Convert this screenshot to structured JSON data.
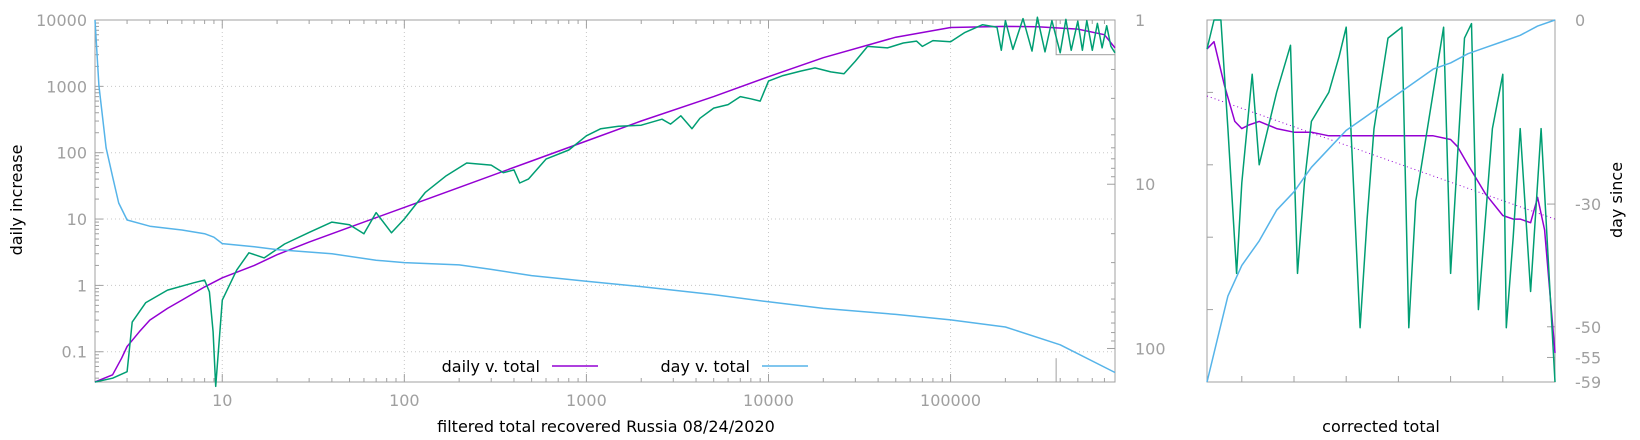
{
  "chart_data": [
    {
      "type": "line",
      "x_scale": "log",
      "y_scale": "log",
      "y2_scale": "log-reversed",
      "xlabel": "filtered total recovered Russia 08/24/2020",
      "ylabel": "daily increase",
      "y2label": "",
      "xlim": [
        2,
        800000
      ],
      "ylim": [
        0.035,
        10000
      ],
      "y2lim": [
        1,
        160
      ],
      "x_ticks": [
        10,
        100,
        1000,
        10000,
        100000
      ],
      "x_tick_labels": [
        "10",
        "100",
        "1000",
        "10000",
        "100000"
      ],
      "y_ticks": [
        0.1,
        1,
        10,
        100,
        1000,
        10000
      ],
      "y_tick_labels": [
        "0.1",
        "1",
        "10",
        "100",
        "1000",
        "10000"
      ],
      "y2_ticks": [
        1,
        10,
        100
      ],
      "y2_tick_labels": [
        "1",
        "10",
        "100"
      ],
      "grid": true,
      "legend_position": "bottom-center",
      "series": [
        {
          "name": "daily v. total",
          "color": "#9400d3",
          "axis": "y",
          "x": [
            2,
            2.5,
            2.8,
            3,
            3.5,
            4,
            5,
            6,
            8,
            10,
            15,
            20,
            30,
            50,
            100,
            200,
            500,
            1000,
            2000,
            5000,
            10000,
            20000,
            50000,
            100000,
            200000,
            300000,
            500000,
            700000,
            800000
          ],
          "y": [
            0.035,
            0.045,
            0.08,
            0.12,
            0.2,
            0.3,
            0.45,
            0.6,
            0.95,
            1.3,
            2.0,
            2.9,
            4.5,
            7.5,
            15,
            30,
            75,
            150,
            300,
            700,
            1400,
            2700,
            5500,
            7700,
            8000,
            7900,
            7300,
            6000,
            3800
          ]
        },
        {
          "name": "",
          "color": "#009e73",
          "axis": "y",
          "x": [
            2,
            2.5,
            3,
            3.2,
            3.8,
            5,
            7,
            8,
            8.5,
            8.9,
            9.2,
            10,
            12,
            14,
            17,
            22,
            30,
            40,
            50,
            60,
            70,
            85,
            100,
            130,
            170,
            220,
            300,
            350,
            400,
            430,
            480,
            600,
            800,
            1000,
            1200,
            1500,
            2000,
            2600,
            2900,
            3300,
            3800,
            4200,
            5000,
            6000,
            7000,
            8000,
            9000,
            10000,
            12000,
            15000,
            18000,
            22000,
            26000,
            30000,
            35000,
            45000,
            55000,
            65000,
            70000,
            80000,
            100000,
            120000,
            150000,
            180000,
            190000,
            200000,
            220000,
            250000,
            280000,
            300000,
            330000,
            360000,
            400000,
            430000,
            460000,
            500000,
            530000,
            560000,
            600000,
            640000,
            680000,
            720000,
            760000,
            800000
          ],
          "y": [
            0.035,
            0.04,
            0.05,
            0.28,
            0.55,
            0.85,
            1.1,
            1.2,
            0.8,
            0.2,
            0.03,
            0.6,
            1.7,
            3.1,
            2.6,
            4.2,
            6.3,
            9,
            8.2,
            6,
            12.5,
            6.2,
            10,
            25,
            45,
            70,
            65,
            50,
            55,
            35,
            40,
            80,
            110,
            180,
            230,
            250,
            260,
            320,
            270,
            360,
            230,
            330,
            470,
            530,
            700,
            650,
            600,
            1200,
            1450,
            1700,
            1900,
            1650,
            1550,
            2400,
            4000,
            3800,
            4500,
            4800,
            4000,
            4900,
            4700,
            6500,
            8500,
            7800,
            3500,
            9800,
            3600,
            10500,
            3400,
            11000,
            3300,
            9800,
            3200,
            10200,
            3500,
            9600,
            3500,
            9800,
            3500,
            8900,
            3800,
            8200,
            4000,
            3200
          ]
        },
        {
          "name": "day v. total",
          "color": "#56b4e9",
          "axis": "y2",
          "x": [
            2,
            2.1,
            2.3,
            2.5,
            2.7,
            3,
            4,
            6,
            8,
            9,
            10,
            15,
            20,
            40,
            70,
            100,
            200,
            300,
            500,
            1000,
            2000,
            5000,
            10000,
            20000,
            50000,
            100000,
            200000,
            400000,
            800000
          ],
          "y2": [
            1,
            2.5,
            6,
            9,
            13,
            16.5,
            18,
            19,
            20,
            21,
            23,
            24,
            25,
            26.5,
            29,
            30,
            31,
            33,
            36,
            39,
            42,
            47,
            52,
            57,
            62,
            67,
            74,
            95,
            140
          ]
        }
      ],
      "inset_box": {
        "x": [
          380000,
          800000
        ],
        "y": [
          3000,
          10000
        ]
      }
    },
    {
      "type": "line",
      "xlabel": "corrected total",
      "ylabel": "",
      "y2label": "day since",
      "y_scale": "linear",
      "y2lim": [
        -59,
        0
      ],
      "y2_ticks": [
        0,
        -30,
        -50,
        -55,
        -59
      ],
      "y2_tick_labels": [
        "0",
        "-30",
        "-50",
        "-55",
        "-59"
      ],
      "xlim": [
        0,
        1
      ],
      "ylim": [
        0,
        1
      ],
      "series": [
        {
          "name": "",
          "color": "#9400d3",
          "x": [
            0,
            0.02,
            0.05,
            0.08,
            0.1,
            0.12,
            0.15,
            0.2,
            0.25,
            0.3,
            0.35,
            0.4,
            0.5,
            0.55,
            0.6,
            0.65,
            0.7,
            0.72,
            0.75,
            0.8,
            0.85,
            0.88,
            0.9,
            0.93,
            0.95,
            0.97,
            1
          ],
          "y": [
            0.92,
            0.94,
            0.82,
            0.72,
            0.7,
            0.71,
            0.72,
            0.7,
            0.69,
            0.69,
            0.68,
            0.68,
            0.68,
            0.68,
            0.68,
            0.68,
            0.67,
            0.65,
            0.6,
            0.52,
            0.46,
            0.45,
            0.45,
            0.44,
            0.51,
            0.42,
            0.08
          ]
        },
        {
          "name": "",
          "color": "#009e73",
          "x": [
            0,
            0.02,
            0.04,
            0.06,
            0.085,
            0.1,
            0.13,
            0.15,
            0.2,
            0.24,
            0.26,
            0.28,
            0.3,
            0.35,
            0.38,
            0.4,
            0.44,
            0.46,
            0.48,
            0.52,
            0.56,
            0.58,
            0.6,
            0.65,
            0.68,
            0.7,
            0.74,
            0.76,
            0.78,
            0.82,
            0.85,
            0.86,
            0.88,
            0.9,
            0.93,
            0.95,
            0.96,
            0.98,
            1
          ],
          "y": [
            0.92,
            1.0,
            1.0,
            0.7,
            0.3,
            0.55,
            0.85,
            0.6,
            0.8,
            0.93,
            0.3,
            0.55,
            0.72,
            0.8,
            0.9,
            0.98,
            0.15,
            0.45,
            0.7,
            0.95,
            0.98,
            0.15,
            0.5,
            0.8,
            0.98,
            0.3,
            0.95,
            0.99,
            0.2,
            0.7,
            0.85,
            0.15,
            0.4,
            0.7,
            0.25,
            0.55,
            0.7,
            0.35,
            0.0
          ]
        },
        {
          "name": "",
          "color": "#56b4e9",
          "x": [
            0,
            0.03,
            0.06,
            0.1,
            0.15,
            0.2,
            0.25,
            0.3,
            0.35,
            0.4,
            0.45,
            0.5,
            0.55,
            0.6,
            0.65,
            0.7,
            0.75,
            0.8,
            0.85,
            0.9,
            0.95,
            1
          ],
          "y2": [
            -59,
            -52,
            -45,
            -40,
            -36,
            -31,
            -28,
            -24,
            -21,
            -18,
            -16,
            -14,
            -12,
            -10,
            -8,
            -7,
            -5.5,
            -4.5,
            -3.5,
            -2.5,
            -1,
            0
          ]
        }
      ],
      "dotted_trend": {
        "color": "#9400d3",
        "x": [
          0,
          1
        ],
        "y": [
          0.79,
          0.45
        ]
      }
    }
  ]
}
